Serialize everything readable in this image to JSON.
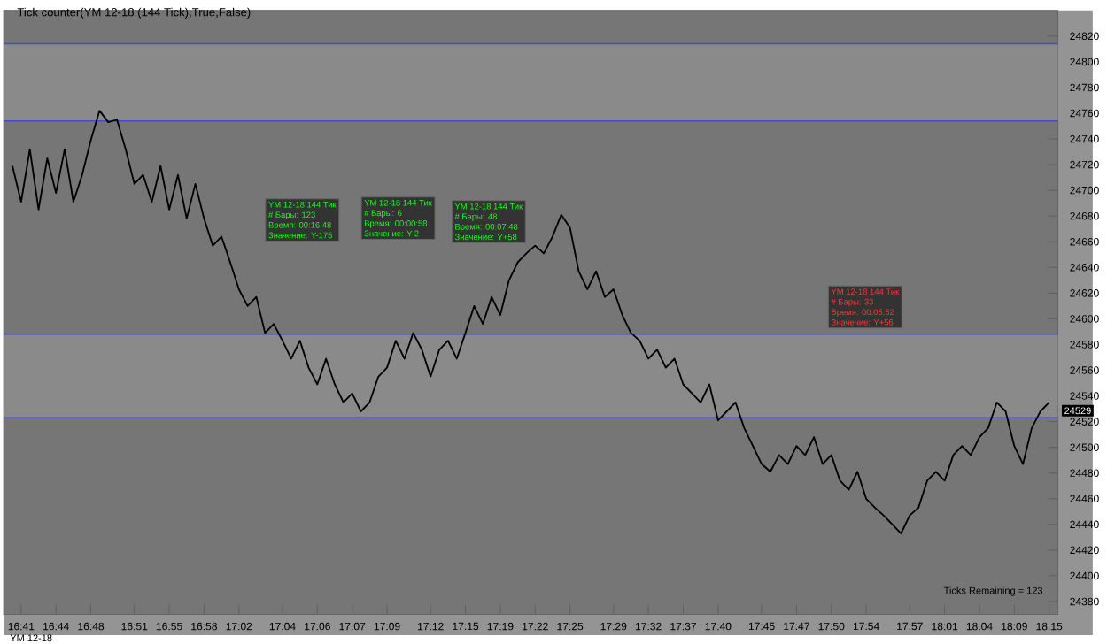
{
  "chart_data": {
    "type": "line",
    "title": "Tick counter(YM 12-18 (144 Tick),True,False)",
    "categories": [
      null,
      "16:41",
      null,
      null,
      null,
      "16:44",
      null,
      null,
      null,
      "16:48",
      null,
      null,
      null,
      null,
      "16:51",
      null,
      null,
      null,
      "16:55",
      null,
      null,
      null,
      "16:58",
      null,
      null,
      null,
      "17:02",
      null,
      null,
      null,
      null,
      "17:04",
      null,
      null,
      null,
      "17:06",
      null,
      null,
      null,
      "17:07",
      null,
      null,
      null,
      "17:09",
      null,
      null,
      null,
      null,
      "17:12",
      null,
      null,
      null,
      "17:15",
      null,
      null,
      null,
      "17:19",
      null,
      null,
      null,
      "17:22",
      null,
      null,
      null,
      "17:25",
      null,
      null,
      null,
      null,
      "17:29",
      null,
      null,
      null,
      "17:32",
      null,
      null,
      null,
      "17:37",
      null,
      null,
      null,
      "17:40",
      null,
      null,
      null,
      null,
      "17:45",
      null,
      null,
      null,
      "17:47",
      null,
      null,
      null,
      "17:50",
      null,
      null,
      null,
      "17:54",
      null,
      null,
      null,
      null,
      "17:57",
      null,
      null,
      null,
      "18:01",
      null,
      null,
      null,
      "18:04",
      null,
      null,
      null,
      "18:09",
      null,
      null,
      null,
      "18:15"
    ],
    "series": [
      {
        "color": "#000000",
        "values": [
          24719,
          24691,
          24732,
          24685,
          24725,
          24698,
          24732,
          24691,
          24712,
          24739,
          24762,
          24753,
          24755,
          24732,
          24705,
          24712,
          24691,
          24719,
          24685,
          24712,
          24678,
          24705,
          24678,
          24657,
          24664,
          24644,
          24623,
          24610,
          24617,
          24589,
          24596,
          24583,
          24569,
          24583,
          24562,
          24549,
          24569,
          24549,
          24535,
          24542,
          24528,
          24535,
          24555,
          24562,
          24583,
          24569,
          24589,
          24576,
          24555,
          24576,
          24583,
          24569,
          24589,
          24610,
          24596,
          24617,
          24603,
          24630,
          24644,
          24651,
          24657,
          24651,
          24664,
          24681,
          24671,
          24637,
          24623,
          24637,
          24617,
          24623,
          24603,
          24589,
          24583,
          24569,
          24576,
          24562,
          24569,
          24549,
          24542,
          24535,
          24549,
          24521,
          24528,
          24535,
          24515,
          24501,
          24487,
          24481,
          24494,
          24487,
          24501,
          24494,
          24508,
          24487,
          24494,
          24474,
          24467,
          24481,
          24460,
          24453,
          24447,
          24440,
          24433,
          24447,
          24453,
          24474,
          24481,
          24474,
          24494,
          24501,
          24494,
          24508,
          24515,
          24535,
          24528,
          24501,
          24487,
          24515,
          24528,
          24535
        ]
      }
    ],
    "ylim": [
      24370,
      24840
    ],
    "yticks": [
      24380,
      24400,
      24420,
      24440,
      24460,
      24480,
      24500,
      24520,
      24540,
      24560,
      24580,
      24600,
      24620,
      24640,
      24660,
      24680,
      24700,
      24720,
      24740,
      24760,
      24780,
      24800,
      24820
    ],
    "bands": [
      {
        "axis": "y",
        "from": 24754,
        "to": 24814,
        "color": "#8a8a8a"
      },
      {
        "axis": "y",
        "from": 24523,
        "to": 24588,
        "color": "#8a8a8a"
      }
    ],
    "ref_lines": [
      {
        "axis": "y",
        "value": 24814,
        "color": "#4a4ac8"
      },
      {
        "axis": "y",
        "value": 24754,
        "color": "#4a4ac8"
      },
      {
        "axis": "y",
        "value": 24588,
        "color": "#4a4ac8"
      },
      {
        "axis": "y",
        "value": 24523,
        "color": "#4a4ac8"
      }
    ],
    "annotations": [
      "YM 12-18 144 Тик",
      "# Бары: 123",
      "Время: 00:16:48",
      "Значение: Y-175",
      "YM 12-18 144 Тик",
      "# Бары: 6",
      "Время: 00:00:58",
      "Значение: Y-2",
      "YM 12-18 144 Тик",
      "# Бары: 48",
      "Время: 00:07:48",
      "Значение: Y+58",
      "YM 12-18 144 Тик",
      "# Бары: 33",
      "Время: 00:05:52",
      "Значение: Y+56",
      "Ticks Remaining = 123",
      "YM 12-18",
      "24529"
    ],
    "grid": false
  }
}
